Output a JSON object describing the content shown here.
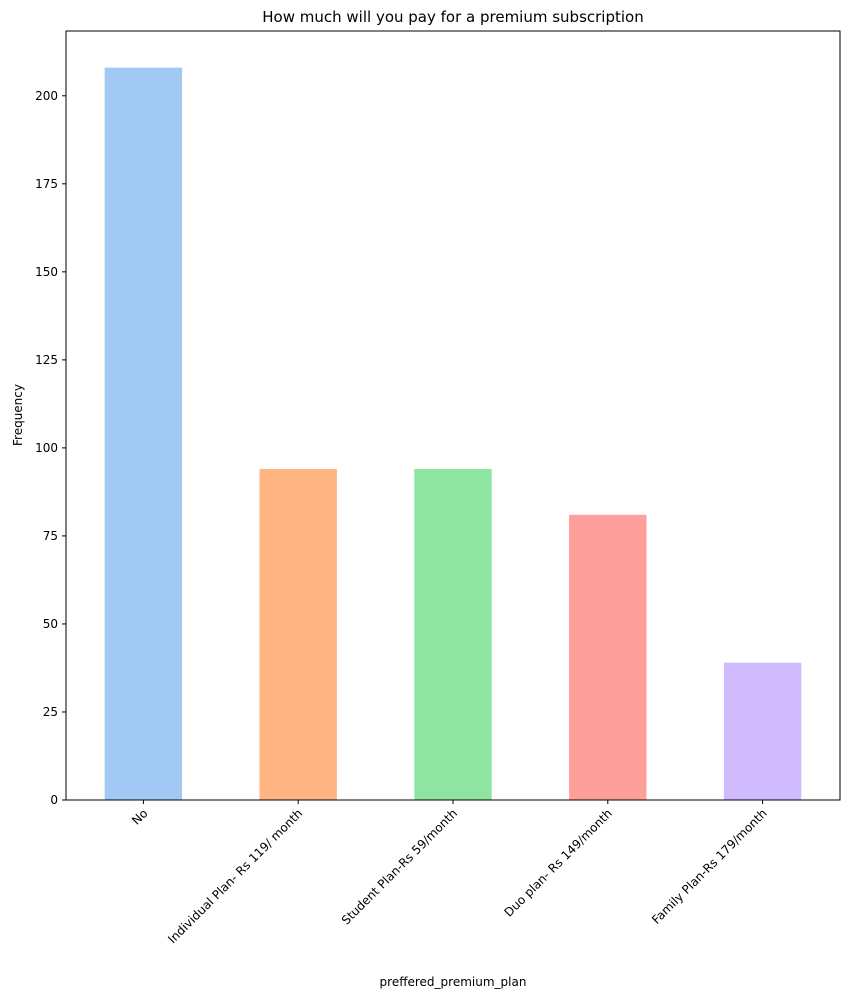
{
  "chart_data": {
    "type": "bar",
    "title": "How much will you pay for a premium subscription",
    "xlabel": "preffered_premium_plan",
    "ylabel": "Frequency",
    "categories": [
      "No",
      "Individual Plan- Rs 119/ month",
      "Student Plan-Rs 59/month",
      "Duo plan- Rs 149/month",
      "Family Plan-Rs 179/month"
    ],
    "values": [
      208,
      94,
      94,
      81,
      39
    ],
    "colors": [
      "#a1c9f4",
      "#ffb482",
      "#8de5a1",
      "#ff9f9b",
      "#d0bbff"
    ],
    "ylim": [
      0,
      218.4
    ],
    "yticks": [
      "0",
      "25",
      "50",
      "75",
      "100",
      "125",
      "150",
      "175",
      "200"
    ],
    "grid": false,
    "legend": "none"
  }
}
